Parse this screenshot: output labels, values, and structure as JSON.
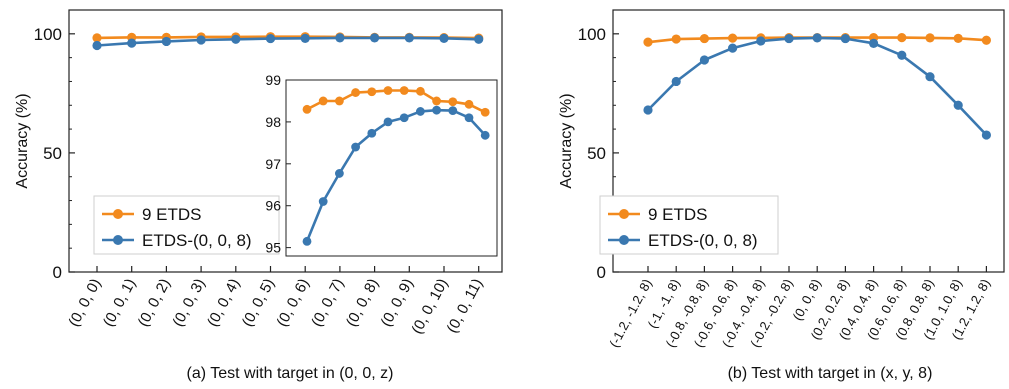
{
  "colors": {
    "nine_etds": "#F28A1E",
    "etds_008": "#3A78B0",
    "axis": "#222222"
  },
  "chart_data": [
    {
      "type": "line",
      "caption": "(a)  Test with target in (0, 0, z)",
      "ylabel": "Accuracy (%)",
      "xlabel": "",
      "ylim": [
        0,
        110
      ],
      "yticks": [
        0,
        50,
        100
      ],
      "categories": [
        "(0, 0, 0)",
        "(0, 0, 1)",
        "(0, 0, 2)",
        "(0, 0, 3)",
        "(0, 0, 4)",
        "(0, 0, 5)",
        "(0, 0, 6)",
        "(0, 0, 7)",
        "(0, 0, 8)",
        "(0, 0, 9)",
        "(0, 0, 10)",
        "(0, 0, 11)"
      ],
      "grid": false,
      "legend_position": "bottom-left",
      "series": [
        {
          "name": "9 ETDS",
          "color": "#F28A1E",
          "values": [
            98.3,
            98.5,
            98.5,
            98.7,
            98.7,
            98.8,
            98.8,
            98.7,
            98.5,
            98.5,
            98.4,
            98.2
          ]
        },
        {
          "name": "ETDS-(0, 0, 8)",
          "color": "#3A78B0",
          "values": [
            95.1,
            96.1,
            96.8,
            97.4,
            97.7,
            98.0,
            98.1,
            98.3,
            98.3,
            98.3,
            98.1,
            97.7
          ]
        }
      ],
      "inset": {
        "ylim": [
          94.8,
          99
        ],
        "yticks": [
          95,
          96,
          97,
          98,
          99
        ],
        "series": [
          {
            "name": "9 ETDS",
            "color": "#F28A1E",
            "values": [
              98.3,
              98.5,
              98.5,
              98.7,
              98.72,
              98.75,
              98.75,
              98.73,
              98.5,
              98.48,
              98.42,
              98.23
            ]
          },
          {
            "name": "ETDS-(0, 0, 8)",
            "color": "#3A78B0",
            "values": [
              95.15,
              96.1,
              96.77,
              97.4,
              97.73,
              98.0,
              98.1,
              98.25,
              98.28,
              98.27,
              98.1,
              97.68
            ]
          }
        ]
      }
    },
    {
      "type": "line",
      "caption": "(b) Test with target in (x, y, 8)",
      "ylabel": "Accuracy (%)",
      "xlabel": "",
      "ylim": [
        0,
        110
      ],
      "yticks": [
        0,
        50,
        100
      ],
      "categories": [
        "(-1.2, -1.2, 8)",
        "(-1, -1, 8)",
        "(-0.8, -0.8, 8)",
        "(-0.6, -0.6, 8)",
        "(-0.4, -0.4, 8)",
        "(-0.2, -0.2, 8)",
        "(0, 0, 8)",
        "(0.2, 0.2, 8)",
        "(0.4, 0.4, 8)",
        "(0.6, 0.6, 8)",
        "(0.8, 0.8, 8)",
        "(1.0, 1.0, 8)",
        "(1.2, 1.2, 8)"
      ],
      "grid": false,
      "legend_position": "bottom-left",
      "series": [
        {
          "name": "9 ETDS",
          "color": "#F28A1E",
          "values": [
            96.5,
            97.8,
            98.0,
            98.2,
            98.3,
            98.4,
            98.4,
            98.4,
            98.4,
            98.4,
            98.3,
            98.1,
            97.3
          ]
        },
        {
          "name": "ETDS-(0, 0, 8)",
          "color": "#3A78B0",
          "values": [
            68,
            80,
            89,
            94,
            97,
            98,
            98.3,
            98,
            96,
            91,
            82,
            70,
            57.5
          ]
        }
      ]
    }
  ]
}
